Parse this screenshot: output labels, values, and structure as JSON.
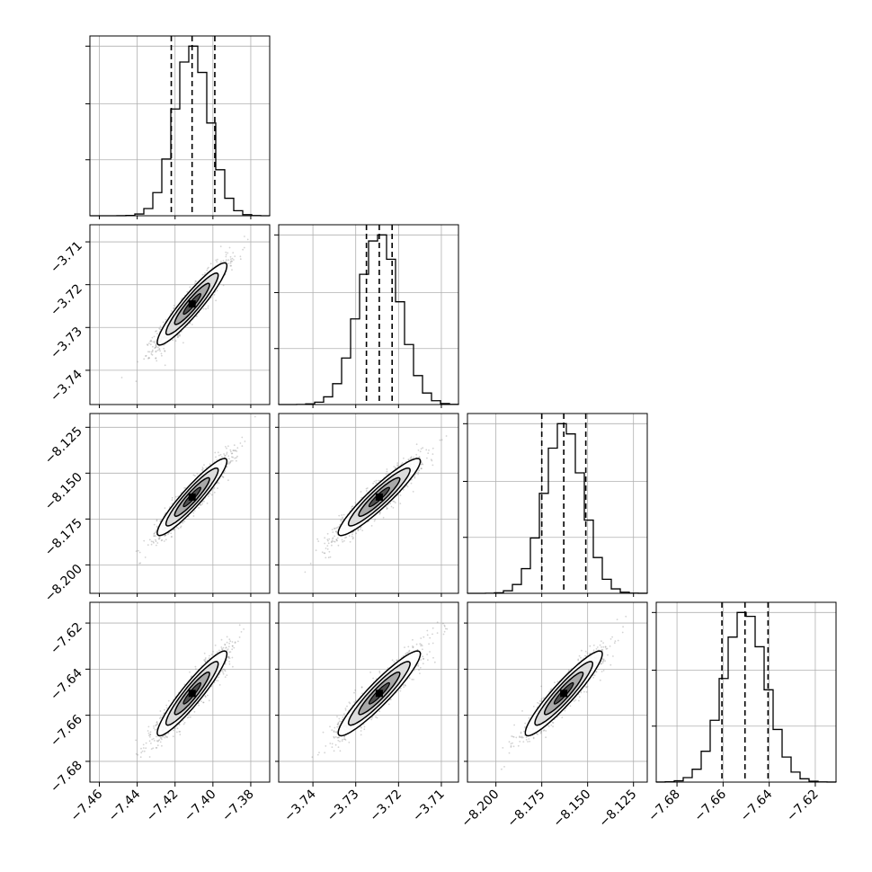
{
  "chart_data": {
    "type": "corner",
    "parameters": [
      {
        "range": [
          -7.465,
          -7.37
        ],
        "ticks": [
          "-7.46",
          "-7.44",
          "-7.42",
          "-7.40",
          "-7.38"
        ],
        "tick_values": [
          -7.46,
          -7.44,
          -7.42,
          -7.4,
          -7.38
        ],
        "quantiles": [
          -7.422,
          -7.411,
          -7.399
        ],
        "mean": -7.411,
        "std": 0.0092
      },
      {
        "range": [
          -3.748,
          -3.706
        ],
        "ticks": [
          "-3.74",
          "-3.73",
          "-3.72",
          "-3.71"
        ],
        "tick_values": [
          -3.74,
          -3.73,
          -3.72,
          -3.71
        ],
        "quantiles": [
          -3.7275,
          -3.7245,
          -3.7215
        ],
        "mean": -3.7245,
        "std": 0.0048
      },
      {
        "range": [
          -8.2155,
          -8.1175
        ],
        "ticks": [
          "-8.200",
          "-8.175",
          "-8.150",
          "-8.125"
        ],
        "tick_values": [
          -8.2,
          -8.175,
          -8.15,
          -8.125
        ],
        "quantiles": [
          -8.175,
          -8.163,
          -8.151
        ],
        "mean": -8.163,
        "std": 0.0105
      },
      {
        "range": [
          -7.689,
          -7.611
        ],
        "ticks": [
          "-7.68",
          "-7.66",
          "-7.64",
          "-7.62"
        ],
        "tick_values": [
          -7.68,
          -7.66,
          -7.64,
          -7.62
        ],
        "quantiles": [
          -7.6605,
          -7.6505,
          -7.6405
        ],
        "mean": -7.6505,
        "std": 0.0092
      }
    ],
    "correlation": 0.93,
    "histogram_bins": 20,
    "grid": true,
    "hist_color": "#000000",
    "point_color": "#808080",
    "contour_color": "#000000"
  }
}
